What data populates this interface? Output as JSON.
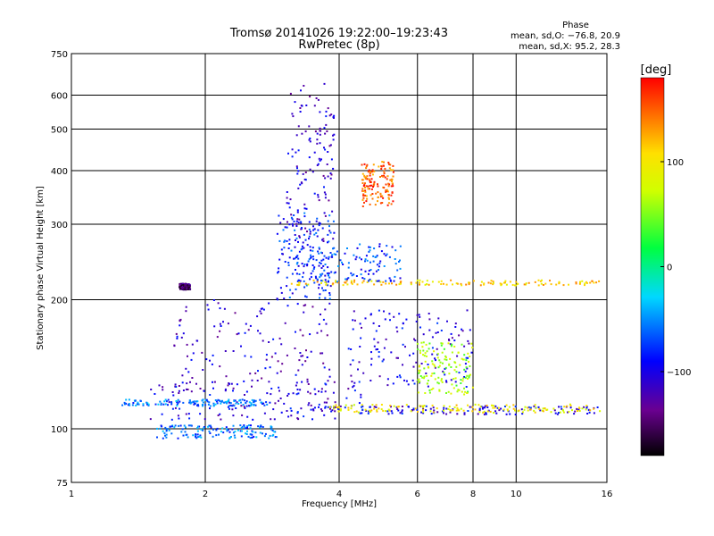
{
  "chart_data": {
    "type": "scatter",
    "title": "Tromsø 20141026 19:22:00–19:23:43",
    "subtitle": "RwPretec (8p)",
    "xlabel": "Frequency [MHz]",
    "ylabel": "Stationary phase Virtual Height [km]",
    "x_scale": "log",
    "y_scale": "log",
    "xlim": [
      1,
      16
    ],
    "ylim": [
      75,
      750
    ],
    "x_ticks": [
      "1",
      "2",
      "4",
      "6",
      "8",
      "10",
      "16"
    ],
    "y_ticks": [
      "75",
      "100",
      "200",
      "300",
      "400",
      "500",
      "600",
      "750"
    ],
    "grid": true,
    "stats": {
      "heading": "Phase",
      "lines": [
        "mean, sd,O: −76.8, 20.9",
        "mean, sd,X:  95.2, 28.3"
      ]
    },
    "colorbar": {
      "label": "[deg]",
      "range": [
        -180,
        180
      ],
      "ticks": [
        "100",
        "0",
        "−100"
      ],
      "colormap": "rainbow"
    },
    "clusters": [
      {
        "f": [
          3.05,
          3.9
        ],
        "h": [
          270,
          640
        ],
        "phase": -110
      },
      {
        "f": [
          2.9,
          3.9
        ],
        "h": [
          200,
          320
        ],
        "phase": -80
      },
      {
        "f": [
          1.7,
          3.9
        ],
        "h": [
          120,
          200
        ],
        "phase": -110
      },
      {
        "f": [
          1.5,
          4.5
        ],
        "h": [
          105,
          130
        ],
        "phase": -105
      },
      {
        "f": [
          1.3,
          2.8
        ],
        "h": [
          113,
          117
        ],
        "phase": -55
      },
      {
        "f": [
          1.55,
          2.9
        ],
        "h": [
          95,
          102
        ],
        "phase": -60
      },
      {
        "f": [
          2.95,
          15.5
        ],
        "h": [
          108,
          113
        ],
        "phase": -100
      },
      {
        "f": [
          3.8,
          15.5
        ],
        "h": [
          109,
          114
        ],
        "phase": 95
      },
      {
        "f": [
          3.0,
          15.5
        ],
        "h": [
          216,
          222
        ],
        "phase": 110
      },
      {
        "f": [
          3.2,
          5.5
        ],
        "h": [
          220,
          270
        ],
        "phase": -75
      },
      {
        "f": [
          4.2,
          8.0
        ],
        "h": [
          125,
          190
        ],
        "phase": -100
      },
      {
        "f": [
          6.0,
          8.0
        ],
        "h": [
          120,
          160
        ],
        "phase": 60
      },
      {
        "f": [
          4.5,
          5.3
        ],
        "h": [
          330,
          420
        ],
        "phase": 150
      },
      {
        "f": [
          1.75,
          1.85
        ],
        "h": [
          211,
          218
        ],
        "phase": -150
      }
    ]
  }
}
